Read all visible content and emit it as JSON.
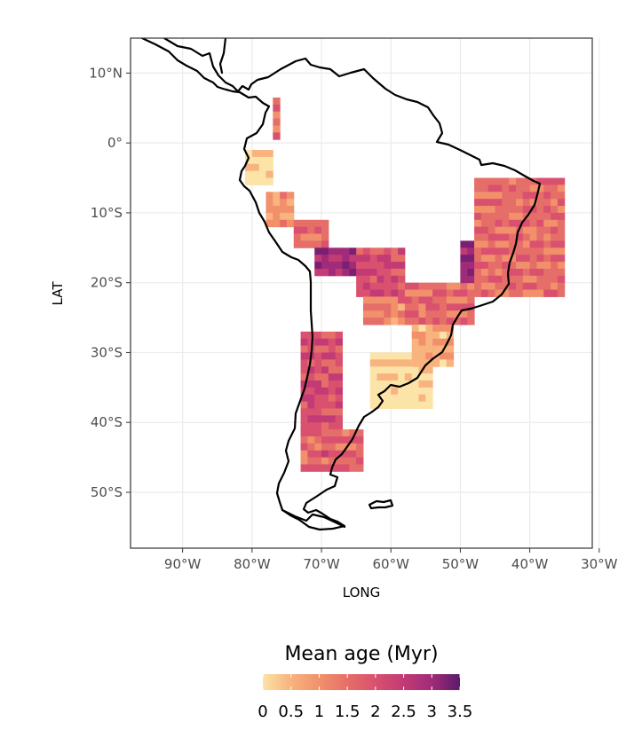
{
  "map": {
    "x_axis": {
      "title": "LONG",
      "ticks": [
        {
          "value": -90,
          "label": "90°W"
        },
        {
          "value": -80,
          "label": "80°W"
        },
        {
          "value": -70,
          "label": "70°W"
        },
        {
          "value": -60,
          "label": "60°W"
        },
        {
          "value": -50,
          "label": "50°W"
        },
        {
          "value": -40,
          "label": "40°W"
        },
        {
          "value": -30,
          "label": "30°W"
        }
      ],
      "range": [
        -97.5,
        -31
      ]
    },
    "y_axis": {
      "title": "LAT",
      "ticks": [
        {
          "value": 10,
          "label": "10°N"
        },
        {
          "value": 0,
          "label": "0°"
        },
        {
          "value": -10,
          "label": "10°S"
        },
        {
          "value": -20,
          "label": "20°S"
        },
        {
          "value": -30,
          "label": "30°S"
        },
        {
          "value": -40,
          "label": "40°S"
        },
        {
          "value": -50,
          "label": "50°S"
        }
      ],
      "range": [
        -58,
        15
      ]
    },
    "grid": true,
    "legend": {
      "title": "Mean age (Myr)",
      "labels": [
        "0",
        "0.5",
        "1",
        "1.5",
        "2",
        "2.5",
        "3",
        "3.5"
      ],
      "position": "bottom",
      "colors": [
        "#fce3a8",
        "#f8b37e",
        "#f1906b",
        "#e66e68",
        "#d9516f",
        "#c33b75",
        "#a02b78",
        "#7a1f74"
      ]
    },
    "colors": {
      "coast": "#000000",
      "grid": "#ebebeb",
      "panel_border": "#333333"
    },
    "raster_regions": [
      {
        "name": "colombia-north",
        "lon": [
          -77,
          -76
        ],
        "lat": [
          6.5,
          1
        ],
        "age": 1.8
      },
      {
        "name": "ecuador-coast",
        "lon": [
          -81,
          -77
        ],
        "lat": [
          -1,
          -6
        ],
        "age": 0.1
      },
      {
        "name": "peru-andes",
        "lon": [
          -78,
          -74
        ],
        "lat": [
          -7,
          -12
        ],
        "age": 1.2
      },
      {
        "name": "peru-amazon-strip",
        "lon": [
          -74,
          -69
        ],
        "lat": [
          -11,
          -15
        ],
        "age": 1.9
      },
      {
        "name": "altiplano-core",
        "lon": [
          -71,
          -65
        ],
        "lat": [
          -15,
          -19
        ],
        "age": 3.2
      },
      {
        "name": "bolivia-east",
        "lon": [
          -65,
          -58
        ],
        "lat": [
          -15,
          -22
        ],
        "age": 2.3
      },
      {
        "name": "chaco",
        "lon": [
          -64,
          -58
        ],
        "lat": [
          -22,
          -26
        ],
        "age": 1.5
      },
      {
        "name": "parana",
        "lon": [
          -58,
          -48
        ],
        "lat": [
          -20,
          -26
        ],
        "age": 1.9
      },
      {
        "name": "pampas",
        "lon": [
          -63,
          -54
        ],
        "lat": [
          -30,
          -38
        ],
        "age": 0.2
      },
      {
        "name": "uruguay-south-brazil",
        "lon": [
          -57,
          -51
        ],
        "lat": [
          -26,
          -32
        ],
        "age": 0.9
      },
      {
        "name": "central-chile-andes",
        "lon": [
          -73,
          -67
        ],
        "lat": [
          -27,
          -41
        ],
        "age": 2.3
      },
      {
        "name": "patagonia-north",
        "lon": [
          -73,
          -64
        ],
        "lat": [
          -41,
          -47
        ],
        "age": 2.0
      },
      {
        "name": "mato-grosso-block",
        "lon": [
          -50,
          -47
        ],
        "lat": [
          -14,
          -20
        ],
        "age": 3.4
      },
      {
        "name": "brazil-atlantic-forest",
        "lon": [
          -48,
          -35
        ],
        "lat": [
          -5,
          -22
        ],
        "age": 1.8
      }
    ]
  }
}
